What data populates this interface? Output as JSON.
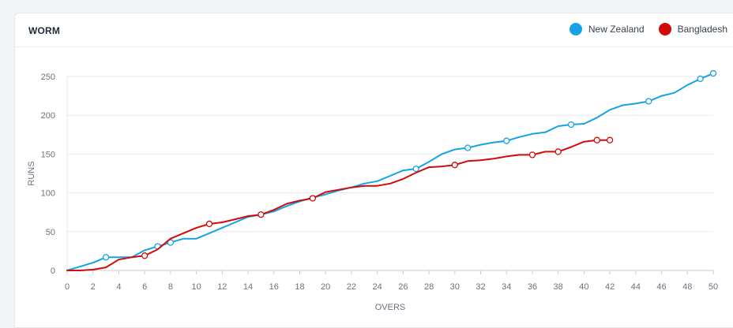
{
  "card": {
    "title": "WORM"
  },
  "colors": {
    "nz": "#14a3e6",
    "bd": "#d10a0a",
    "grid": "#e8eaed",
    "axis": "#6b7280"
  },
  "chart_data": {
    "type": "line",
    "title": "WORM",
    "xlabel": "OVERS",
    "ylabel": "RUNS",
    "xlim": [
      0,
      50
    ],
    "ylim": [
      0,
      250
    ],
    "xticks": [
      0,
      2,
      4,
      6,
      8,
      10,
      12,
      14,
      16,
      18,
      20,
      22,
      24,
      26,
      28,
      30,
      32,
      34,
      36,
      38,
      40,
      42,
      44,
      46,
      48,
      50
    ],
    "yticks": [
      0,
      50,
      100,
      150,
      200,
      250
    ],
    "grid": true,
    "legend_position": "top-right",
    "series": [
      {
        "name": "New Zealand",
        "color": "#14a3e6",
        "x": [
          0,
          1,
          2,
          3,
          4,
          5,
          6,
          7,
          8,
          9,
          10,
          11,
          12,
          13,
          14,
          15,
          16,
          17,
          18,
          19,
          20,
          21,
          22,
          23,
          24,
          25,
          26,
          27,
          28,
          29,
          30,
          31,
          32,
          33,
          34,
          35,
          36,
          37,
          38,
          39,
          40,
          41,
          42,
          43,
          44,
          45,
          46,
          47,
          48,
          49,
          50
        ],
        "y": [
          0,
          5,
          10,
          17,
          17,
          17,
          26,
          31,
          36,
          41,
          41,
          48,
          55,
          62,
          69,
          72,
          76,
          83,
          89,
          94,
          98,
          103,
          107,
          112,
          115,
          122,
          129,
          131,
          140,
          150,
          156,
          158,
          162,
          165,
          167,
          172,
          176,
          178,
          186,
          188,
          189,
          197,
          207,
          213,
          215,
          218,
          225,
          229,
          239,
          247,
          254
        ],
        "wicket_overs": [
          3,
          7,
          8,
          27,
          31,
          34,
          39,
          45,
          49,
          50
        ]
      },
      {
        "name": "Bangladesh",
        "color": "#d10a0a",
        "x": [
          0,
          1,
          2,
          3,
          4,
          5,
          6,
          7,
          8,
          9,
          10,
          11,
          12,
          13,
          14,
          15,
          16,
          17,
          18,
          19,
          20,
          21,
          22,
          23,
          24,
          25,
          26,
          27,
          28,
          29,
          30,
          31,
          32,
          33,
          34,
          35,
          36,
          37,
          38,
          39,
          40,
          41,
          42
        ],
        "y": [
          0,
          0,
          1,
          4,
          14,
          17,
          19,
          27,
          41,
          48,
          55,
          60,
          62,
          66,
          70,
          72,
          78,
          86,
          90,
          93,
          101,
          104,
          107,
          109,
          109,
          112,
          118,
          126,
          133,
          134,
          136,
          141,
          142,
          144,
          147,
          149,
          149,
          153,
          153,
          159,
          166,
          168,
          168
        ],
        "wicket_overs": [
          6,
          11,
          15,
          19,
          30,
          36,
          38,
          41,
          42
        ]
      }
    ]
  }
}
